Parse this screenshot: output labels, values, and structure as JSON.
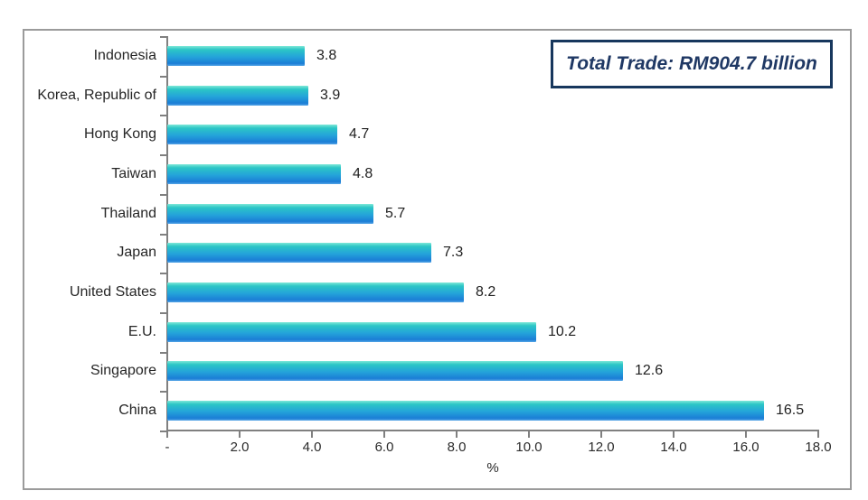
{
  "chart_data": {
    "type": "bar",
    "orientation": "horizontal",
    "categories": [
      "Indonesia",
      "Korea, Republic of",
      "Hong Kong",
      "Taiwan",
      "Thailand",
      "Japan",
      "United States",
      "E.U.",
      "Singapore",
      "China"
    ],
    "values": [
      3.8,
      3.9,
      4.7,
      4.8,
      5.7,
      7.3,
      8.2,
      10.2,
      12.6,
      16.5
    ],
    "value_labels": [
      "3.8",
      "3.9",
      "4.7",
      "4.8",
      "5.7",
      "7.3",
      "8.2",
      "10.2",
      "12.6",
      "16.5"
    ],
    "title": "",
    "xlabel": "%",
    "ylabel": "",
    "xlim": [
      0,
      18
    ],
    "xtick_labels": [
      "-",
      "2.0",
      "4.0",
      "6.0",
      "8.0",
      "10.0",
      "12.0",
      "14.0",
      "16.0",
      "18.0"
    ],
    "grid": false,
    "legend": false,
    "annotation": "Total Trade: RM904.7 billion"
  },
  "annotation_box": {
    "text": "Total Trade: RM904.7 billion"
  },
  "colors": {
    "bar_gradient": [
      "#7fe8d8",
      "#2cc6c6",
      "#24a3da",
      "#1b7ed6",
      "#55a6e6"
    ],
    "axis": "#808080",
    "frame_border": "#9b9b9b",
    "box_border": "#17375d",
    "box_text": "#1f3864",
    "label_text": "#262626"
  }
}
